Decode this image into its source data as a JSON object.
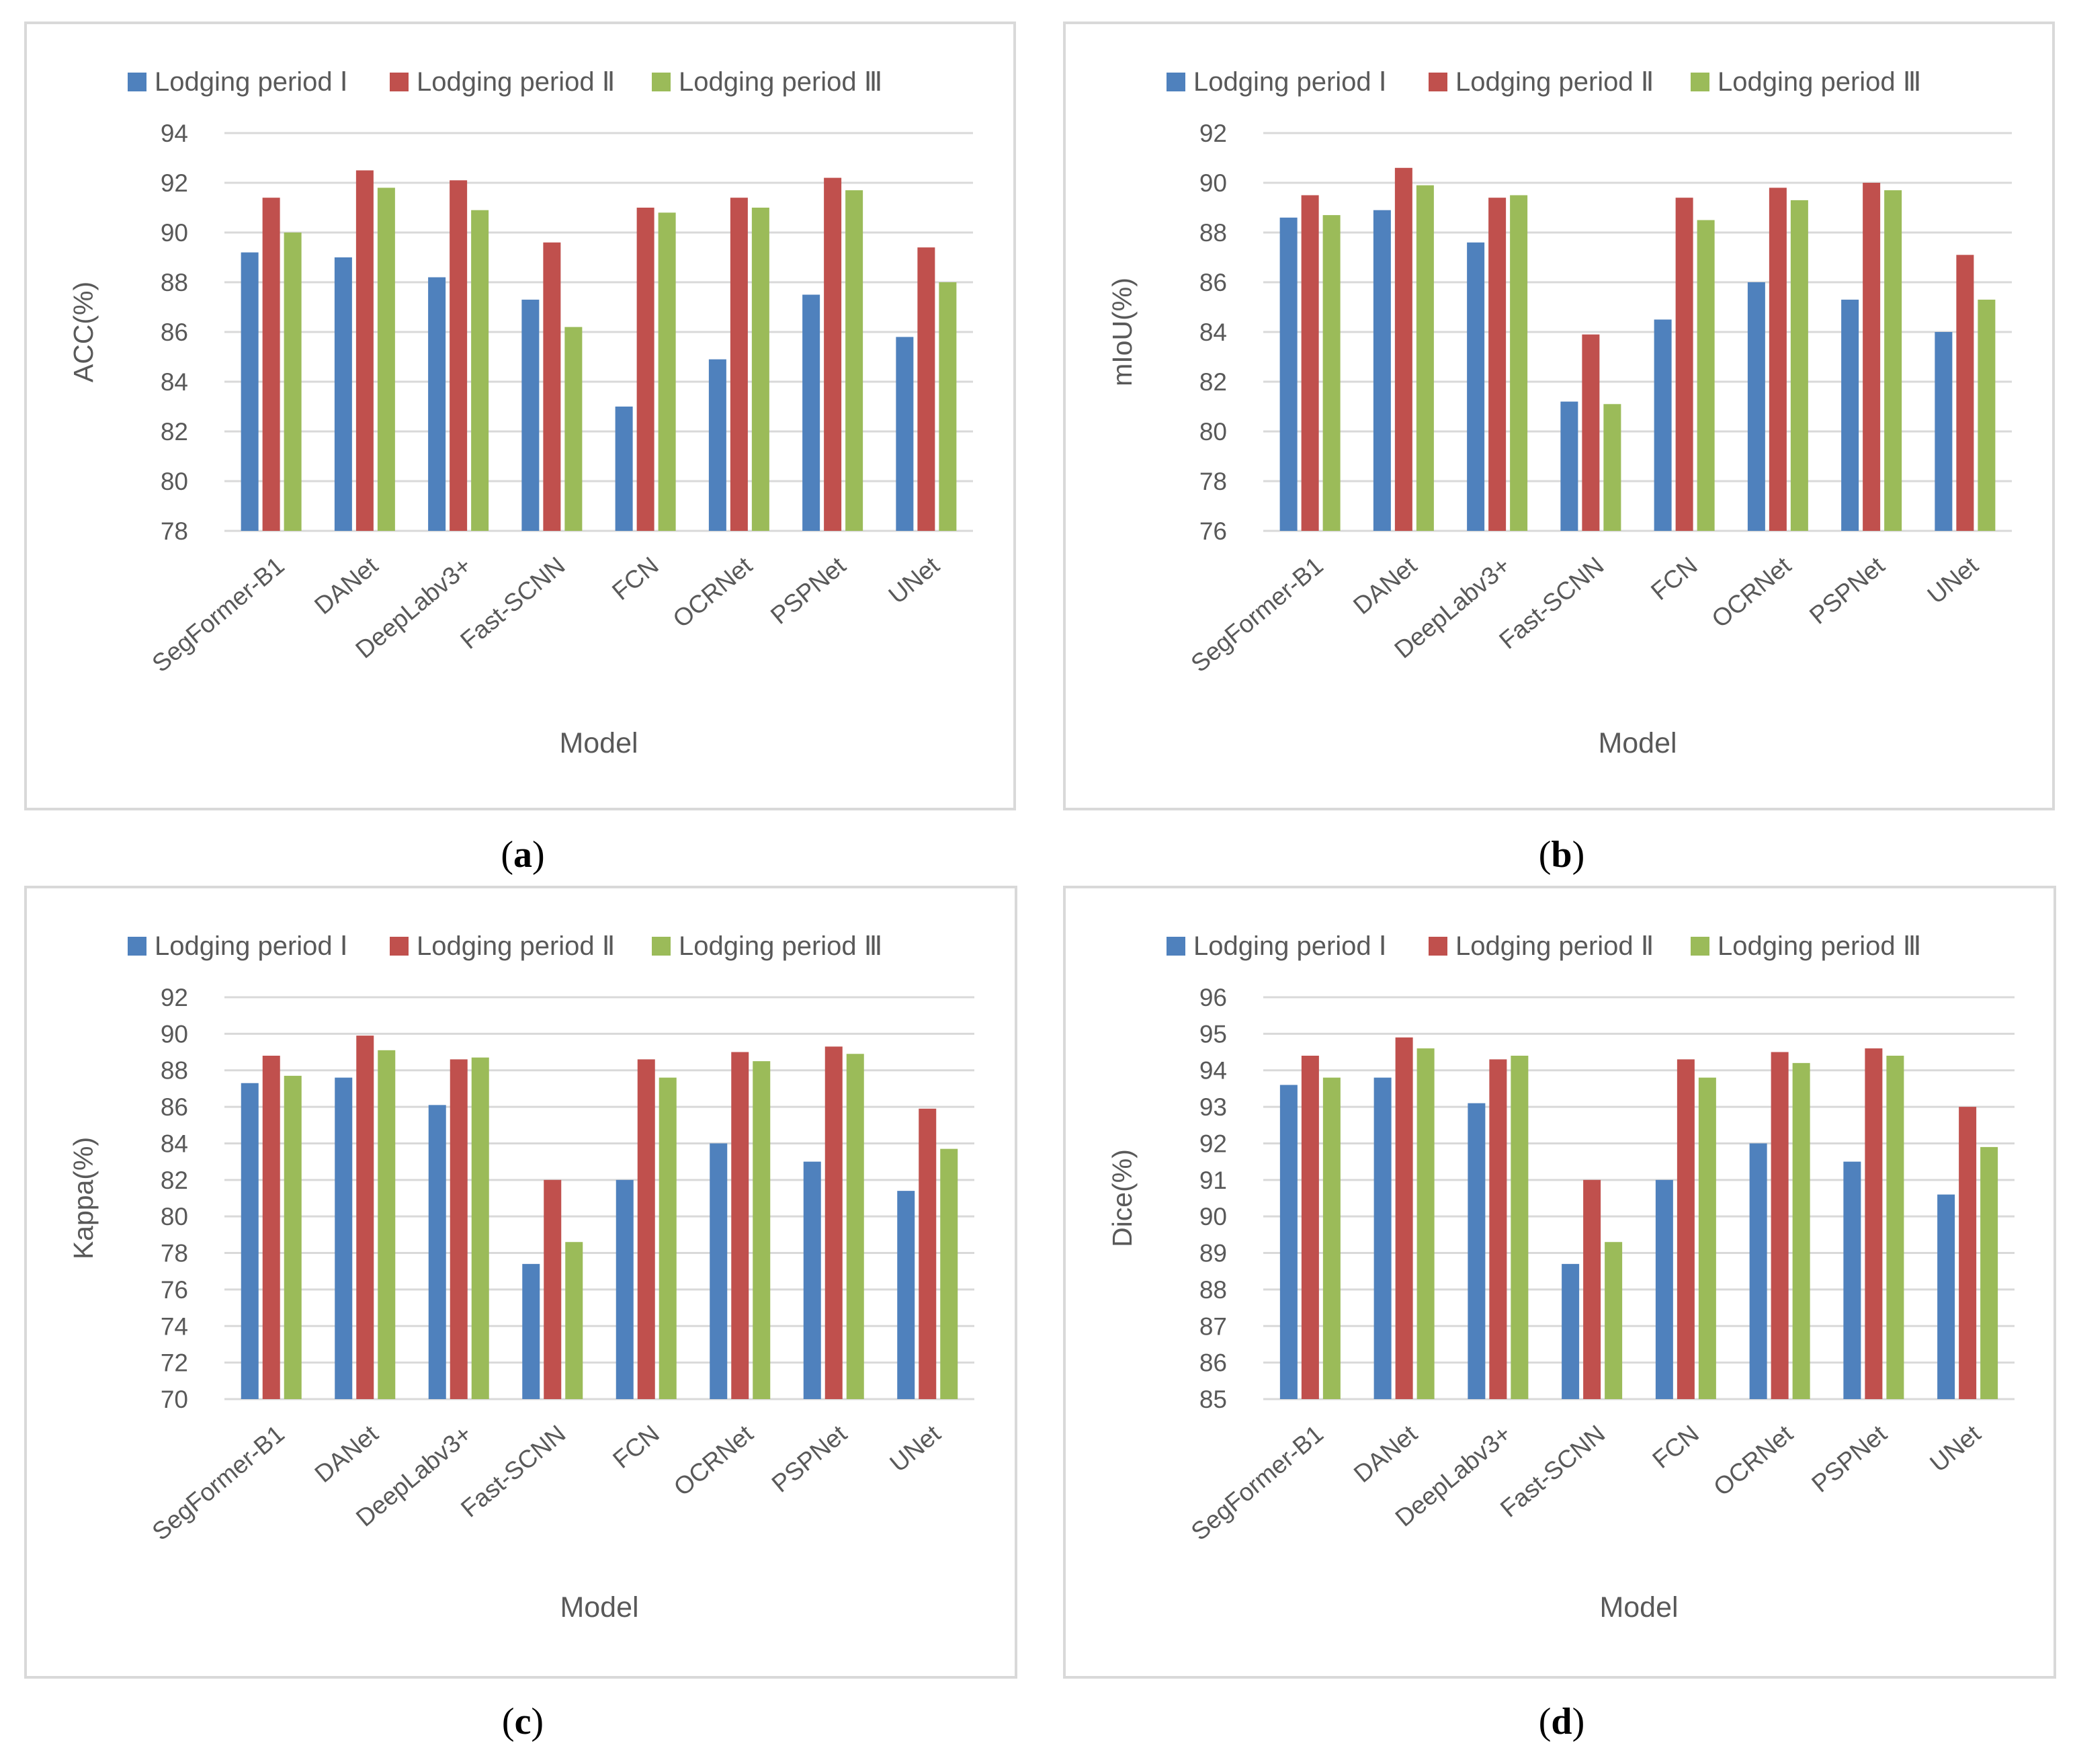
{
  "colors": {
    "series": [
      "#4f81bd",
      "#c0504d",
      "#9bbb59"
    ],
    "grid": "#d9d9d9",
    "frame": "#d9d9d9",
    "text": "#595959"
  },
  "chart_data": [
    {
      "type": "bar",
      "panel_label": "a",
      "title": "",
      "xlabel": "Model",
      "ylabel": "ACC(%)",
      "ylim": [
        78,
        94
      ],
      "ytick_step": 2,
      "grid": true,
      "legend_position": "top",
      "categories": [
        "SegFormer-B1",
        "DANet",
        "DeepLabv3+",
        "Fast-SCNN",
        "FCN",
        "OCRNet",
        "PSPNet",
        "UNet"
      ],
      "series": [
        {
          "name": "Lodging period Ⅰ",
          "values": [
            89.2,
            89.0,
            88.2,
            87.3,
            83.0,
            84.9,
            87.5,
            85.8
          ]
        },
        {
          "name": "Lodging period Ⅱ",
          "values": [
            91.4,
            92.5,
            92.1,
            89.6,
            91.0,
            91.4,
            92.2,
            89.4
          ]
        },
        {
          "name": "Lodging period Ⅲ",
          "values": [
            90.0,
            91.8,
            90.9,
            86.2,
            90.8,
            91.0,
            91.7,
            88.0
          ]
        }
      ]
    },
    {
      "type": "bar",
      "panel_label": "b",
      "title": "",
      "xlabel": "Model",
      "ylabel": "mIoU(%)",
      "ylim": [
        76,
        92
      ],
      "ytick_step": 2,
      "grid": true,
      "legend_position": "top",
      "categories": [
        "SegFormer-B1",
        "DANet",
        "DeepLabv3+",
        "Fast-SCNN",
        "FCN",
        "OCRNet",
        "PSPNet",
        "UNet"
      ],
      "series": [
        {
          "name": "Lodging period Ⅰ",
          "values": [
            88.6,
            88.9,
            87.6,
            81.2,
            84.5,
            86.0,
            85.3,
            84.0
          ]
        },
        {
          "name": "Lodging period Ⅱ",
          "values": [
            89.5,
            90.6,
            89.4,
            83.9,
            89.4,
            89.8,
            90.0,
            87.1
          ]
        },
        {
          "name": "Lodging period Ⅲ",
          "values": [
            88.7,
            89.9,
            89.5,
            81.1,
            88.5,
            89.3,
            89.7,
            85.3
          ]
        }
      ]
    },
    {
      "type": "bar",
      "panel_label": "c",
      "title": "",
      "xlabel": "Model",
      "ylabel": "Kappa(%)",
      "ylim": [
        70,
        92
      ],
      "ytick_step": 2,
      "grid": true,
      "legend_position": "top",
      "categories": [
        "SegFormer-B1",
        "DANet",
        "DeepLabv3+",
        "Fast-SCNN",
        "FCN",
        "OCRNet",
        "PSPNet",
        "UNet"
      ],
      "series": [
        {
          "name": "Lodging period Ⅰ",
          "values": [
            87.3,
            87.6,
            86.1,
            77.4,
            82.0,
            84.0,
            83.0,
            81.4
          ]
        },
        {
          "name": "Lodging period Ⅱ",
          "values": [
            88.8,
            89.9,
            88.6,
            82.0,
            88.6,
            89.0,
            89.3,
            85.9
          ]
        },
        {
          "name": "Lodging period Ⅲ",
          "values": [
            87.7,
            89.1,
            88.7,
            78.6,
            87.6,
            88.5,
            88.9,
            83.7
          ]
        }
      ]
    },
    {
      "type": "bar",
      "panel_label": "d",
      "title": "",
      "xlabel": "Model",
      "ylabel": "Dice(%)",
      "ylim": [
        85,
        96
      ],
      "ytick_step": 1,
      "grid": true,
      "legend_position": "top",
      "categories": [
        "SegFormer-B1",
        "DANet",
        "DeepLabv3+",
        "Fast-SCNN",
        "FCN",
        "OCRNet",
        "PSPNet",
        "UNet"
      ],
      "series": [
        {
          "name": "Lodging period Ⅰ",
          "values": [
            93.6,
            93.8,
            93.1,
            88.7,
            91.0,
            92.0,
            91.5,
            90.6
          ]
        },
        {
          "name": "Lodging period Ⅱ",
          "values": [
            94.4,
            94.9,
            94.3,
            91.0,
            94.3,
            94.5,
            94.6,
            93.0
          ]
        },
        {
          "name": "Lodging period Ⅲ",
          "values": [
            93.8,
            94.6,
            94.4,
            89.3,
            93.8,
            94.2,
            94.4,
            91.9
          ]
        }
      ]
    }
  ]
}
